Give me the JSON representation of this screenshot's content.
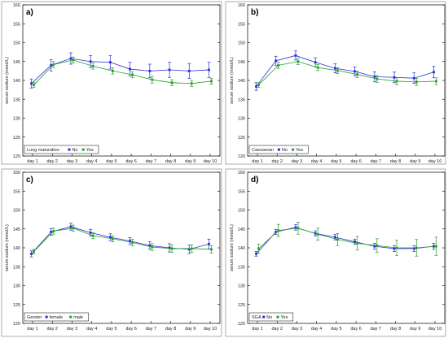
{
  "chart_data": [
    {
      "type": "line",
      "panel_label": "a)",
      "ylabel": "serum sodium (mmol/L)",
      "ylim": [
        120,
        160
      ],
      "yticks": [
        120,
        125,
        130,
        135,
        140,
        145,
        150,
        155,
        160
      ],
      "categories": [
        "day 1",
        "day 2",
        "day 3",
        "day 4",
        "day 5",
        "day 6",
        "day 7",
        "day 8",
        "day 9",
        "day 10"
      ],
      "legend_title": "Lung maturation",
      "series": [
        {
          "name": "No",
          "color": "#2b2bd9",
          "values": [
            139.2,
            144.0,
            145.8,
            145.0,
            144.8,
            143.0,
            142.5,
            142.8,
            142.5,
            142.8
          ],
          "err": [
            1.2,
            1.5,
            1.5,
            1.6,
            1.8,
            1.8,
            1.8,
            2.0,
            2.0,
            2.0
          ]
        },
        {
          "name": "Yes",
          "color": "#22a02a",
          "values": [
            138.8,
            144.2,
            145.4,
            143.8,
            142.5,
            141.5,
            140.2,
            139.4,
            139.2,
            139.8
          ],
          "err": [
            0.6,
            0.8,
            0.8,
            0.8,
            0.8,
            0.8,
            0.9,
            0.8,
            0.8,
            0.8
          ]
        }
      ]
    },
    {
      "type": "line",
      "panel_label": "b)",
      "ylabel": "serum sodium (mmol/L)",
      "ylim": [
        120,
        160
      ],
      "yticks": [
        120,
        125,
        130,
        135,
        140,
        145,
        150,
        155,
        160
      ],
      "categories": [
        "day 1",
        "day 2",
        "day 3",
        "day 4",
        "day 5",
        "day 6",
        "day 7",
        "day 8",
        "day 9",
        "day 10"
      ],
      "legend_title": "Caesarean",
      "series": [
        {
          "name": "No",
          "color": "#2b2bd9",
          "values": [
            138.4,
            145.2,
            146.6,
            144.8,
            143.2,
            142.4,
            141.0,
            140.8,
            140.6,
            142.2
          ],
          "err": [
            1.0,
            1.2,
            1.2,
            1.2,
            1.2,
            1.2,
            1.3,
            1.4,
            1.4,
            1.5
          ]
        },
        {
          "name": "Yes",
          "color": "#22a02a",
          "values": [
            138.8,
            144.0,
            145.0,
            143.4,
            142.6,
            141.6,
            140.4,
            139.8,
            139.6,
            139.8
          ],
          "err": [
            0.6,
            0.8,
            0.8,
            0.8,
            0.8,
            0.8,
            0.9,
            0.9,
            0.9,
            0.9
          ]
        }
      ]
    },
    {
      "type": "line",
      "panel_label": "c)",
      "ylabel": "serum sodium (mmol/L)",
      "ylim": [
        120,
        160
      ],
      "yticks": [
        120,
        125,
        130,
        135,
        140,
        145,
        150,
        155,
        160
      ],
      "categories": [
        "day 1",
        "day 2",
        "day 3",
        "day 4",
        "day 5",
        "day 6",
        "day 7",
        "day 8",
        "day 9",
        "day 10"
      ],
      "legend_title": "Gender",
      "series": [
        {
          "name": "female",
          "color": "#2b2bd9",
          "values": [
            138.4,
            144.2,
            145.6,
            144.0,
            142.8,
            141.8,
            140.6,
            140.0,
            139.6,
            141.0
          ],
          "err": [
            0.8,
            0.9,
            0.9,
            0.9,
            0.9,
            0.9,
            1.0,
            1.1,
            1.1,
            1.3
          ]
        },
        {
          "name": "male",
          "color": "#22a02a",
          "values": [
            139.0,
            144.4,
            145.2,
            143.2,
            142.4,
            141.4,
            140.2,
            139.8,
            139.8,
            139.6
          ],
          "err": [
            0.6,
            0.8,
            0.8,
            0.8,
            0.8,
            0.9,
            0.9,
            1.0,
            1.0,
            1.0
          ]
        }
      ]
    },
    {
      "type": "line",
      "panel_label": "d)",
      "ylabel": "serum sodium (mmol/L)",
      "ylim": [
        120,
        160
      ],
      "yticks": [
        120,
        125,
        130,
        135,
        140,
        145,
        150,
        155,
        160
      ],
      "categories": [
        "day 1",
        "day 2",
        "day 3",
        "day 4",
        "day 5",
        "day 6",
        "day 7",
        "day 8",
        "day 9",
        "day 10"
      ],
      "legend_title": "SGA",
      "series": [
        {
          "name": "No",
          "color": "#2b2bd9",
          "values": [
            138.4,
            144.2,
            145.4,
            143.8,
            142.8,
            141.6,
            140.4,
            139.8,
            139.8,
            140.4
          ],
          "err": [
            0.6,
            0.7,
            0.7,
            0.7,
            0.7,
            0.7,
            0.8,
            0.8,
            0.8,
            0.8
          ]
        },
        {
          "name": "Yes",
          "color": "#22a02a",
          "values": [
            139.8,
            144.6,
            145.2,
            143.6,
            142.2,
            141.2,
            140.6,
            140.0,
            140.0,
            140.4
          ],
          "err": [
            1.2,
            1.6,
            1.6,
            1.6,
            1.6,
            1.8,
            1.8,
            2.0,
            2.2,
            2.4
          ]
        }
      ]
    }
  ]
}
